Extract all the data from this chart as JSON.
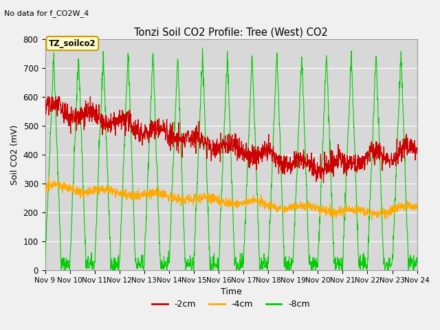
{
  "title": "Tonzi Soil CO2 Profile: Tree (West) CO2",
  "subtitle": "No data for f_CO2W_4",
  "xlabel": "Time",
  "ylabel": "Soil CO2 (mV)",
  "legend_label": "TZ_soilco2",
  "series_labels": [
    "-2cm",
    "-4cm",
    "-8cm"
  ],
  "series_colors": [
    "#cc0000",
    "#ffaa00",
    "#00cc00"
  ],
  "ylim": [
    0,
    800
  ],
  "bg_color": "#d8d8d8",
  "grid_color": "#ffffff",
  "x_tick_labels": [
    "Nov 9",
    "Nov 10",
    "Nov 11",
    "Nov 12",
    "Nov 13",
    "Nov 14",
    "Nov 15",
    "Nov 16",
    "Nov 17",
    "Nov 18",
    "Nov 19",
    "Nov 20",
    "Nov 21",
    "Nov 22",
    "Nov 23",
    "Nov 24"
  ]
}
